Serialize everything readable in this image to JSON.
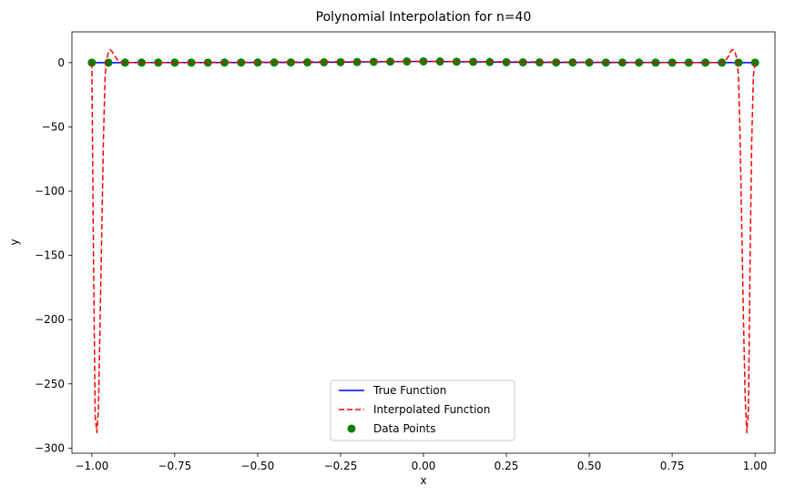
{
  "chart_data": {
    "type": "line",
    "title": "Polynomial Interpolation for n=40",
    "xlabel": "x",
    "ylabel": "y",
    "xlim": [
      -1.06,
      1.06
    ],
    "ylim": [
      -304,
      24
    ],
    "x_ticks": [
      -1.0,
      -0.75,
      -0.5,
      -0.25,
      0.0,
      0.25,
      0.5,
      0.75,
      1.0
    ],
    "x_tick_labels": [
      "−1.00",
      "−0.75",
      "−0.50",
      "−0.25",
      "0.00",
      "0.25",
      "0.50",
      "0.75",
      "1.00"
    ],
    "y_ticks": [
      0,
      -50,
      -100,
      -150,
      -200,
      -250,
      -300
    ],
    "y_tick_labels": [
      "0",
      "−50",
      "−100",
      "−150",
      "−200",
      "−250",
      "−300"
    ],
    "grid": false,
    "legend_position": "bottom-center",
    "series": [
      {
        "name": "True Function",
        "style": "solid",
        "color": "#0000ff",
        "x": [
          -1.0,
          -0.9,
          -0.8,
          -0.7,
          -0.6,
          -0.5,
          -0.4,
          -0.3,
          -0.2,
          -0.1,
          0.0,
          0.1,
          0.2,
          0.3,
          0.4,
          0.5,
          0.6,
          0.7,
          0.8,
          0.9,
          1.0
        ],
        "y": [
          0.04,
          0.05,
          0.06,
          0.08,
          0.1,
          0.14,
          0.2,
          0.31,
          0.5,
          0.8,
          1.0,
          0.8,
          0.5,
          0.31,
          0.2,
          0.14,
          0.1,
          0.08,
          0.06,
          0.05,
          0.04
        ]
      },
      {
        "name": "Interpolated Function",
        "style": "dashed",
        "color": "#ff0000",
        "x": [
          -1.0,
          -0.995,
          -0.99,
          -0.985,
          -0.98,
          -0.975,
          -0.97,
          -0.965,
          -0.96,
          -0.955,
          -0.95,
          -0.945,
          -0.94,
          -0.935,
          -0.93,
          -0.925,
          -0.92,
          -0.91,
          -0.9,
          -0.85,
          -0.8,
          0.0,
          0.8,
          0.85,
          0.9,
          0.91,
          0.92,
          0.925,
          0.93,
          0.935,
          0.94,
          0.945,
          0.95,
          0.955,
          0.96,
          0.965,
          0.97,
          0.975,
          0.98,
          0.985,
          0.99,
          0.995,
          1.0
        ],
        "y": [
          0.04,
          -150,
          -275,
          -288,
          -270,
          -200,
          -130,
          -60,
          -10,
          3,
          8,
          10,
          9,
          7,
          5,
          3,
          1.5,
          0.5,
          0.05,
          0.06,
          0.06,
          1.0,
          0.06,
          0.06,
          0.05,
          1.5,
          5,
          8,
          10,
          10,
          8,
          3,
          -10,
          -60,
          -130,
          -200,
          -260,
          -288,
          -270,
          -150,
          -60,
          -10,
          0.04
        ]
      },
      {
        "name": "Data Points",
        "style": "scatter",
        "color": "#008000",
        "x": [
          -1.0,
          -0.95,
          -0.9,
          -0.85,
          -0.8,
          -0.75,
          -0.7,
          -0.65,
          -0.6,
          -0.55,
          -0.5,
          -0.45,
          -0.4,
          -0.35,
          -0.3,
          -0.25,
          -0.2,
          -0.15,
          -0.1,
          -0.05,
          0.0,
          0.05,
          0.1,
          0.15,
          0.2,
          0.25,
          0.3,
          0.35,
          0.4,
          0.45,
          0.5,
          0.55,
          0.6,
          0.65,
          0.7,
          0.75,
          0.8,
          0.85,
          0.9,
          0.95,
          1.0
        ],
        "y": [
          0.04,
          0.04,
          0.05,
          0.05,
          0.06,
          0.07,
          0.08,
          0.09,
          0.1,
          0.12,
          0.14,
          0.16,
          0.2,
          0.25,
          0.31,
          0.39,
          0.5,
          0.64,
          0.8,
          0.94,
          1.0,
          0.94,
          0.8,
          0.64,
          0.5,
          0.39,
          0.31,
          0.25,
          0.2,
          0.16,
          0.14,
          0.12,
          0.1,
          0.09,
          0.08,
          0.07,
          0.06,
          0.05,
          0.05,
          0.04,
          0.04
        ]
      }
    ]
  }
}
